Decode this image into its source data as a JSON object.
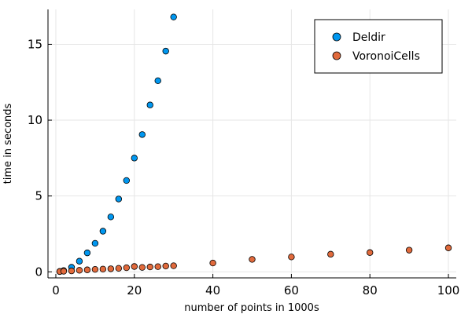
{
  "chart_data": {
    "type": "scatter",
    "title": "",
    "xlabel": "number of points in 1000s",
    "ylabel": "time in seconds",
    "xlim": [
      -2,
      102
    ],
    "ylim": [
      -0.4,
      17.3
    ],
    "xticks": [
      0,
      20,
      40,
      60,
      80,
      100
    ],
    "yticks": [
      0,
      5,
      10,
      15
    ],
    "grid": true,
    "legend_position": "top-right",
    "series": [
      {
        "name": "Deldir",
        "color": "#0097f0",
        "points": [
          [
            1,
            0.02
          ],
          [
            2,
            0.08
          ],
          [
            4,
            0.3
          ],
          [
            6,
            0.7
          ],
          [
            8,
            1.25
          ],
          [
            10,
            1.88
          ],
          [
            12,
            2.68
          ],
          [
            14,
            3.62
          ],
          [
            16,
            4.8
          ],
          [
            18,
            6.02
          ],
          [
            20,
            7.5
          ],
          [
            22,
            9.05
          ],
          [
            24,
            11.0
          ],
          [
            26,
            12.6
          ],
          [
            28,
            14.55
          ],
          [
            30,
            16.8
          ]
        ]
      },
      {
        "name": "VoronoiCells",
        "color": "#e16a3c",
        "points": [
          [
            1,
            0.02
          ],
          [
            2,
            0.04
          ],
          [
            4,
            0.06
          ],
          [
            6,
            0.1
          ],
          [
            8,
            0.13
          ],
          [
            10,
            0.16
          ],
          [
            12,
            0.18
          ],
          [
            14,
            0.2
          ],
          [
            16,
            0.23
          ],
          [
            18,
            0.27
          ],
          [
            20,
            0.35
          ],
          [
            22,
            0.29
          ],
          [
            24,
            0.32
          ],
          [
            26,
            0.34
          ],
          [
            28,
            0.38
          ],
          [
            30,
            0.4
          ],
          [
            40,
            0.58
          ],
          [
            50,
            0.82
          ],
          [
            60,
            0.98
          ],
          [
            70,
            1.16
          ],
          [
            80,
            1.27
          ],
          [
            90,
            1.43
          ],
          [
            100,
            1.58
          ]
        ]
      }
    ]
  }
}
